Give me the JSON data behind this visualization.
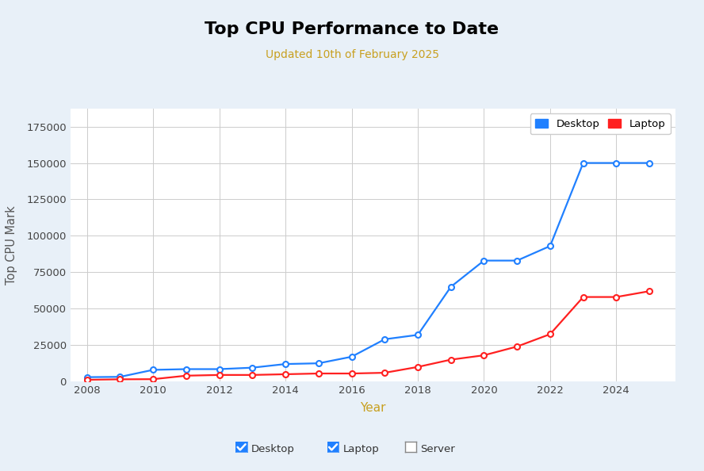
{
  "title": "Top CPU Performance to Date",
  "subtitle": "Updated 10th of February 2025",
  "title_color": "#000000",
  "subtitle_color": "#c8a020",
  "xlabel": "Year",
  "ylabel": "Top CPU Mark",
  "background_color": "#e8f0f8",
  "plot_background_color": "#ffffff",
  "xlabel_color": "#c8a020",
  "ylabel_color": "#555555",
  "desktop_color": "#2080ff",
  "laptop_color": "#ff2020",
  "desktop_years": [
    2008,
    2009,
    2010,
    2011,
    2012,
    2013,
    2014,
    2015,
    2016,
    2017,
    2018,
    2019,
    2020,
    2021,
    2022,
    2023,
    2024,
    2025
  ],
  "desktop_values": [
    3000,
    3200,
    8000,
    8500,
    8500,
    9500,
    12000,
    12500,
    17000,
    29000,
    32000,
    65000,
    83000,
    83000,
    93000,
    150000,
    150000,
    150000
  ],
  "laptop_years": [
    2008,
    2009,
    2010,
    2011,
    2012,
    2013,
    2014,
    2015,
    2016,
    2017,
    2018,
    2019,
    2020,
    2021,
    2022,
    2023,
    2024,
    2025
  ],
  "laptop_values": [
    1200,
    1500,
    1600,
    4000,
    4500,
    4500,
    5000,
    5500,
    5500,
    6000,
    10000,
    15000,
    18000,
    24000,
    32500,
    58000,
    58000,
    62000
  ],
  "ylim": [
    0,
    187500
  ],
  "xlim": [
    2007.5,
    2025.8
  ],
  "yticks": [
    0,
    25000,
    50000,
    75000,
    100000,
    125000,
    150000,
    175000
  ],
  "xticks": [
    2008,
    2010,
    2012,
    2014,
    2016,
    2018,
    2020,
    2022,
    2024
  ],
  "grid_color": "#cccccc",
  "bottom_legend_items": [
    "Desktop",
    "Laptop",
    "Server"
  ],
  "bottom_legend_checked": [
    true,
    true,
    false
  ],
  "checkbox_checked_color": "#2080ff",
  "checkbox_border_color": "#888888"
}
